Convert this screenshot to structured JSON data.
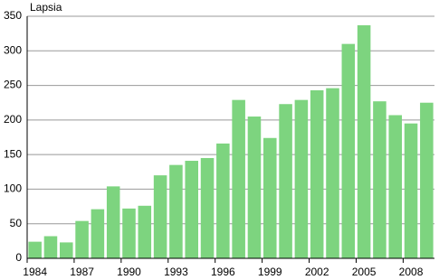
{
  "chart_data": {
    "type": "bar",
    "y_label": "Lapsia",
    "categories": [
      "1984",
      null,
      null,
      "1987",
      null,
      null,
      "1990",
      null,
      null,
      "1993",
      null,
      null,
      "1996",
      null,
      null,
      "1999",
      null,
      null,
      "2002",
      null,
      null,
      "2005",
      null,
      null,
      "2008",
      null
    ],
    "values": [
      24,
      32,
      23,
      54,
      71,
      104,
      72,
      76,
      120,
      135,
      141,
      145,
      166,
      229,
      205,
      174,
      223,
      229,
      243,
      246,
      310,
      337,
      227,
      207,
      195,
      225
    ],
    "color": "#7dd47f",
    "ylim": [
      0,
      350
    ],
    "yticks": [
      0,
      50,
      100,
      150,
      200,
      250,
      300,
      350
    ],
    "grid": true
  }
}
